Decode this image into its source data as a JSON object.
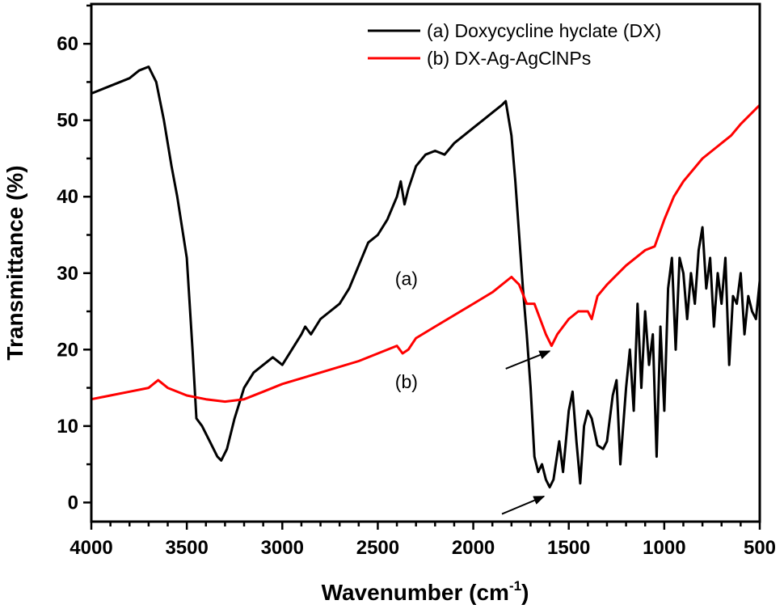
{
  "chart_data": {
    "type": "line",
    "title": "",
    "xlabel": "Wavenumber (cm",
    "xlabel_sup": "-1",
    "xlabel_close": ")",
    "ylabel": "Transmittance (%)",
    "xlim": [
      4000,
      500
    ],
    "ylim": [
      -2.5,
      65.2
    ],
    "xticks": [
      4000,
      3500,
      3000,
      2500,
      2000,
      1500,
      1000,
      500
    ],
    "yticks": [
      0,
      10,
      20,
      30,
      40,
      50,
      60
    ],
    "grid": false,
    "legend_position": "top-right",
    "series": [
      {
        "name": "(a) Doxycycline hyclate (DX)",
        "color": "#000000",
        "x": [
          4000,
          3900,
          3800,
          3750,
          3700,
          3660,
          3620,
          3580,
          3550,
          3500,
          3470,
          3450,
          3420,
          3380,
          3340,
          3320,
          3290,
          3250,
          3200,
          3150,
          3100,
          3050,
          3000,
          2950,
          2900,
          2880,
          2850,
          2800,
          2750,
          2700,
          2650,
          2600,
          2550,
          2500,
          2450,
          2400,
          2380,
          2360,
          2340,
          2300,
          2250,
          2200,
          2150,
          2100,
          2050,
          2000,
          1950,
          1900,
          1850,
          1830,
          1800,
          1780,
          1760,
          1740,
          1720,
          1700,
          1680,
          1660,
          1640,
          1620,
          1600,
          1580,
          1550,
          1530,
          1500,
          1480,
          1460,
          1440,
          1420,
          1400,
          1380,
          1350,
          1320,
          1300,
          1270,
          1250,
          1230,
          1200,
          1180,
          1160,
          1140,
          1120,
          1100,
          1080,
          1060,
          1040,
          1020,
          1000,
          980,
          960,
          940,
          920,
          900,
          880,
          860,
          840,
          820,
          800,
          780,
          760,
          740,
          720,
          700,
          680,
          660,
          640,
          620,
          600,
          580,
          560,
          540,
          520,
          500
        ],
        "y": [
          53.5,
          54.5,
          55.5,
          56.5,
          57,
          55,
          50,
          44,
          40,
          32,
          20,
          11,
          10,
          8,
          6,
          5.5,
          7,
          11,
          15,
          17,
          18,
          19,
          18,
          20,
          22,
          23,
          22,
          24,
          25,
          26,
          28,
          31,
          34,
          35,
          37,
          40,
          42,
          39,
          41,
          44,
          45.5,
          46,
          45.5,
          47,
          48,
          49,
          50,
          51,
          52,
          52.5,
          48,
          42,
          35,
          28,
          22,
          15,
          6,
          4,
          5,
          3,
          2,
          3,
          8,
          4,
          12,
          14.5,
          8,
          2.5,
          10,
          12,
          11,
          7.5,
          7,
          8,
          14,
          16,
          5,
          15,
          20,
          12,
          26,
          15,
          25,
          18,
          22,
          6,
          23,
          12,
          28,
          32,
          20,
          32,
          30,
          24,
          30,
          26,
          33,
          36,
          28,
          32,
          23,
          30,
          26,
          32,
          18,
          27,
          26,
          30,
          22,
          27,
          25,
          24,
          29
        ]
      },
      {
        "name": "(b) DX-Ag-AgClNPs",
        "color": "#ff0000",
        "x": [
          4000,
          3900,
          3800,
          3700,
          3650,
          3600,
          3500,
          3400,
          3300,
          3200,
          3100,
          3000,
          2800,
          2600,
          2400,
          2370,
          2340,
          2300,
          2200,
          2000,
          1900,
          1800,
          1760,
          1720,
          1680,
          1650,
          1620,
          1590,
          1560,
          1500,
          1450,
          1400,
          1380,
          1350,
          1300,
          1200,
          1100,
          1050,
          1000,
          950,
          900,
          800,
          700,
          650,
          600,
          500
        ],
        "y": [
          13.5,
          14,
          14.5,
          15,
          16,
          15,
          14,
          13.5,
          13.2,
          13.5,
          14.5,
          15.5,
          17,
          18.5,
          20.5,
          19.5,
          20,
          21.5,
          23,
          26,
          27.5,
          29.5,
          28.5,
          26,
          26,
          24,
          22,
          20.5,
          22,
          24,
          25,
          25,
          24,
          27,
          28.5,
          31,
          33,
          33.5,
          37,
          40,
          42,
          45,
          47,
          48,
          49.5,
          52
        ]
      }
    ],
    "annotations": [
      {
        "text": "(a)",
        "x": 2350,
        "y": 29.3
      },
      {
        "text": "(b)",
        "x": 2350,
        "y": 15.8
      }
    ],
    "arrows": [
      {
        "from": [
          1830,
          17.5
        ],
        "to": [
          1600,
          19.8
        ]
      },
      {
        "from": [
          1850,
          -1.5
        ],
        "to": [
          1630,
          0.8
        ]
      }
    ]
  }
}
